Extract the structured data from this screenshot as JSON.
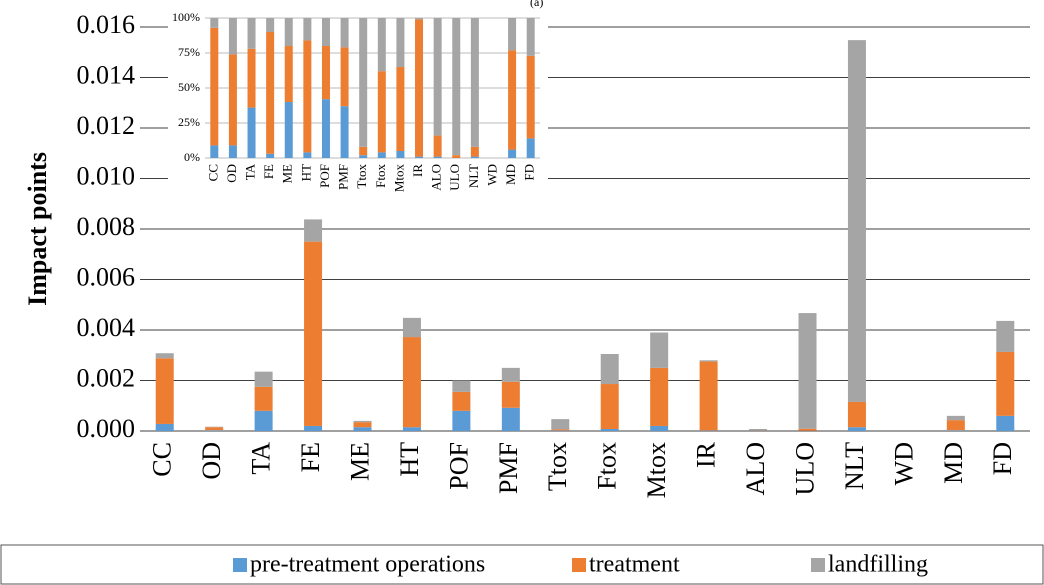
{
  "chart_data": [
    {
      "type": "bar",
      "stacked": true,
      "y_label": "Impact points",
      "grid": true,
      "categories": [
        "CC",
        "OD",
        "TA",
        "FE",
        "ME",
        "HT",
        "POF",
        "PMF",
        "Ttox",
        "Ftox",
        "Mtox",
        "IR",
        "ALO",
        "ULO",
        "NLT",
        "WD",
        "MD",
        "FD"
      ],
      "series": [
        {
          "name": "pre-treatment operations",
          "color": "#5b9bd5",
          "values": [
            0.00028,
            3e-05,
            0.0008,
            0.0002,
            0.00015,
            0.00015,
            0.0008,
            0.00092,
            2e-05,
            8e-05,
            0.0002,
            2e-05,
            0,
            1e-05,
            0.00015,
            0,
            3e-05,
            0.0006
          ]
        },
        {
          "name": "treatment",
          "color": "#ed7d31",
          "values": [
            0.0026,
            0.00012,
            0.00095,
            0.0073,
            0.0002,
            0.00357,
            0.00075,
            0.00103,
            5e-05,
            0.00178,
            0.0023,
            0.00273,
            1e-05,
            8e-05,
            0.001,
            0,
            0.0004,
            0.00253
          ]
        },
        {
          "name": "landfilling",
          "color": "#a5a5a5",
          "values": [
            0.0002,
            2e-05,
            0.0006,
            0.00088,
            5e-05,
            0.00076,
            0.00045,
            0.00055,
            0.0004,
            0.00119,
            0.0014,
            5e-05,
            7e-05,
            0.00458,
            0.01433,
            0,
            0.00017,
            0.00123
          ]
        }
      ],
      "ylim": [
        0,
        0.016
      ],
      "yticks": [
        {
          "value": 0,
          "label": "0.000"
        },
        {
          "value": 0.002,
          "label": "0.002"
        },
        {
          "value": 0.004,
          "label": "0.004"
        },
        {
          "value": 0.006,
          "label": "0.006"
        },
        {
          "value": 0.008,
          "label": "0.008"
        },
        {
          "value": 0.01,
          "label": "0.010"
        },
        {
          "value": 0.012,
          "label": "0.012"
        },
        {
          "value": 0.014,
          "label": "0.014"
        },
        {
          "value": 0.016,
          "label": "0.016"
        }
      ],
      "legend": "bottom"
    },
    {
      "type": "bar",
      "stacked": true,
      "grid": true,
      "annotation": "(a)",
      "categories": [
        "CC",
        "OD",
        "TA",
        "FE",
        "ME",
        "HT",
        "POF",
        "PMF",
        "Ttox",
        "Ftox",
        "Mtox",
        "IR",
        "ALO",
        "ULO",
        "NLT",
        "WD",
        "MD",
        "FD"
      ],
      "series": [
        {
          "color": "#5b9bd5",
          "values": [
            9,
            9,
            36,
            3,
            40,
            4,
            42,
            37,
            2,
            4,
            5,
            1,
            1,
            0,
            1,
            0,
            6,
            14
          ]
        },
        {
          "color": "#ed7d31",
          "values": [
            84,
            65,
            42,
            87,
            40,
            80,
            38,
            42,
            6,
            58,
            60,
            98,
            15,
            2,
            7,
            0,
            71,
            59
          ]
        },
        {
          "color": "#a5a5a5",
          "values": [
            7,
            26,
            22,
            10,
            20,
            16,
            20,
            21,
            92,
            38,
            35,
            1,
            84,
            98,
            92,
            0,
            23,
            27
          ]
        }
      ],
      "ylim": [
        0,
        100
      ],
      "yticks": [
        {
          "value": 0,
          "label": "0%"
        },
        {
          "value": 25,
          "label": "25%"
        },
        {
          "value": 50,
          "label": "50%"
        },
        {
          "value": 75,
          "label": "75%"
        },
        {
          "value": 100,
          "label": "100%"
        }
      ]
    }
  ]
}
